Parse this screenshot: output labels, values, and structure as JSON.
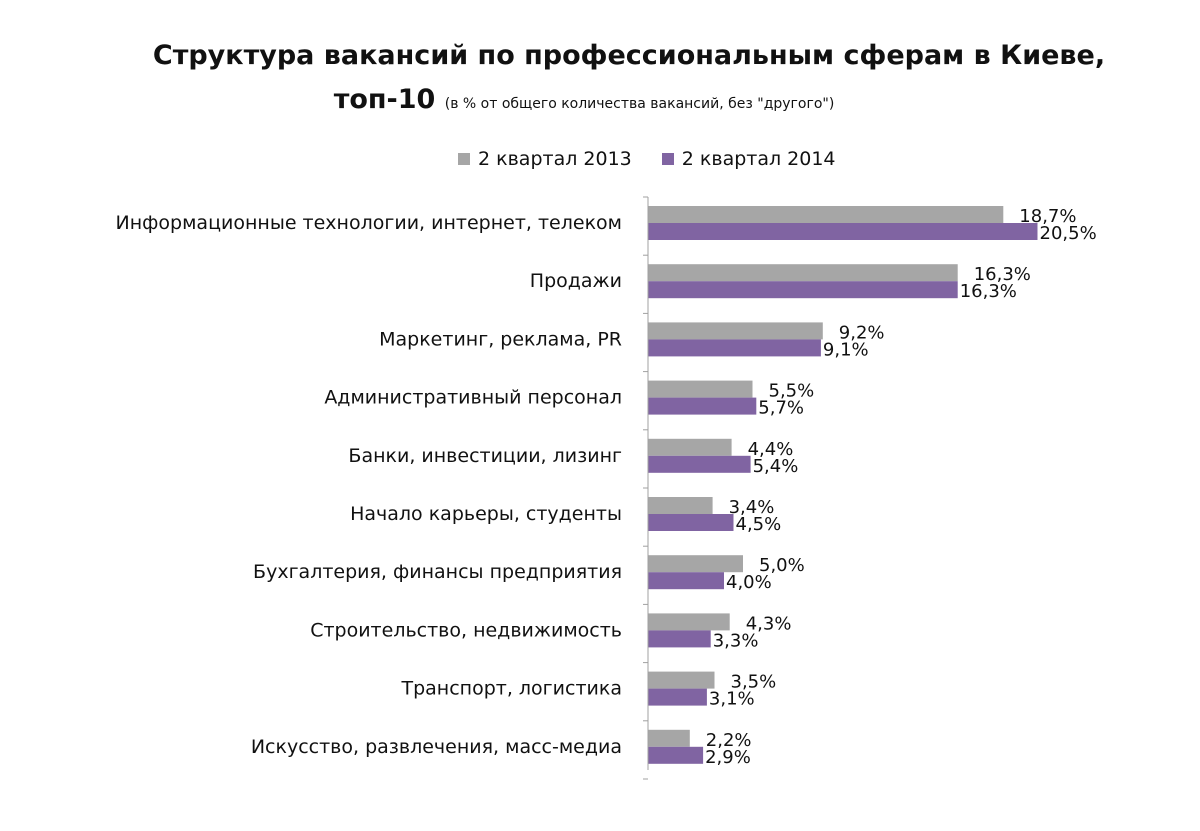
{
  "chart_data": {
    "type": "bar",
    "orientation": "horizontal",
    "title": "Структура вакансий по профессиональным сферам в Киеве,",
    "title_line2": "топ-10",
    "subtitle": "(в % от общего количества вакансий, без \"другого\")",
    "xlim": [
      0,
      22
    ],
    "grid": false,
    "legend_position": "top",
    "categories": [
      "Информационные технологии, интернет, телеком",
      "Продажи",
      "Маркетинг, реклама, PR",
      "Административный персонал",
      "Банки, инвестиции, лизинг",
      "Начало карьеры, студенты",
      "Бухгалтерия, финансы предприятия",
      "Строительство, недвижимость",
      "Транспорт, логистика",
      "Искусство, развлечения, масс-медиа"
    ],
    "series": [
      {
        "name": "2 квартал 2013",
        "color": "#a6a6a6",
        "values": [
          18.7,
          16.3,
          9.2,
          5.5,
          4.4,
          3.4,
          5.0,
          4.3,
          3.5,
          2.2
        ],
        "labels": [
          "18,7%",
          "16,3%",
          "9,2%",
          "5,5%",
          "4,4%",
          "3,4%",
          "5,0%",
          "4,3%",
          "3,5%",
          "2,2%"
        ]
      },
      {
        "name": "2 квартал 2014",
        "color": "#8064a2",
        "values": [
          20.5,
          16.3,
          9.1,
          5.7,
          5.4,
          4.5,
          4.0,
          3.3,
          3.1,
          2.9
        ],
        "labels": [
          "20,5%",
          "16,3%",
          "9,1%",
          "5,7%",
          "5,4%",
          "4,5%",
          "4,0%",
          "3,3%",
          "3,1%",
          "2,9%"
        ]
      }
    ]
  }
}
